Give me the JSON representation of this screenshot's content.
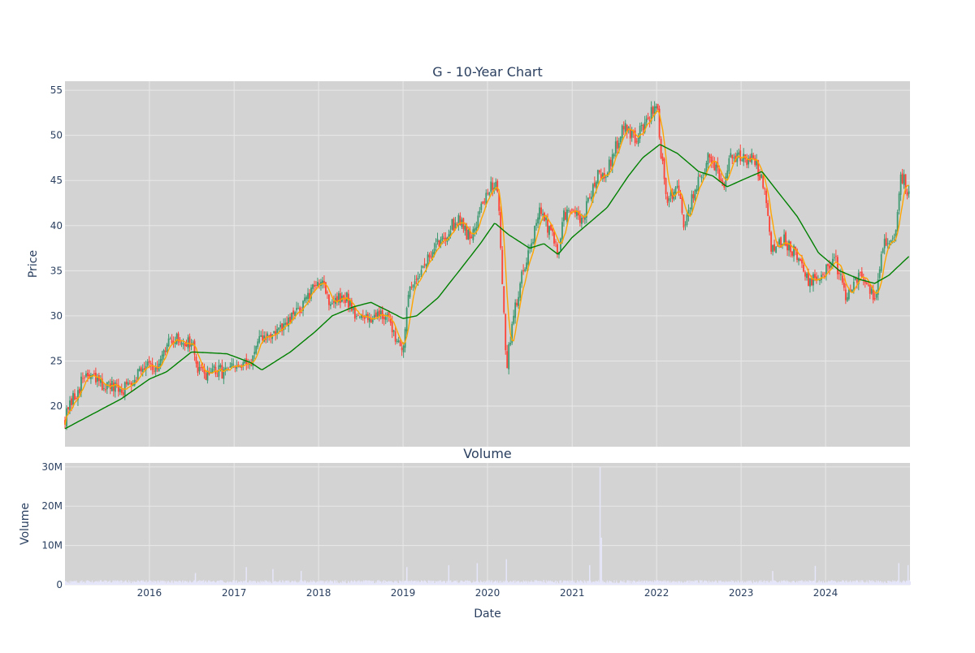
{
  "chart_data": [
    {
      "type": "candlestick",
      "title": "G - 10-Year Chart",
      "ylabel": "Price",
      "xrange": [
        "2015-01-01",
        "2024-12-31"
      ],
      "ylim": [
        15.5,
        56
      ],
      "yticks": [
        20,
        25,
        30,
        35,
        40,
        45,
        50,
        55
      ],
      "grid": true,
      "legend": "none",
      "colors": {
        "up": "#3d9970",
        "down": "#ff4136",
        "ma_short": "#ffa500",
        "ma_long": "#008000",
        "plot_bg": "#d3d3d3",
        "grid": "#e8e8e8",
        "text": "#2a3f5f"
      },
      "price_anchors": [
        [
          "2015-01-01",
          18.7
        ],
        [
          "2015-03-01",
          22.0
        ],
        [
          "2015-04-01",
          23.5
        ],
        [
          "2015-06-01",
          22.5
        ],
        [
          "2015-09-01",
          21.6
        ],
        [
          "2016-01-01",
          25.3
        ],
        [
          "2016-02-01",
          23.5
        ],
        [
          "2016-04-01",
          27.5
        ],
        [
          "2016-07-01",
          27.0
        ],
        [
          "2016-08-01",
          23.6
        ],
        [
          "2016-11-01",
          23.8
        ],
        [
          "2017-03-01",
          24.5
        ],
        [
          "2017-05-01",
          27.5
        ],
        [
          "2017-08-01",
          28.5
        ],
        [
          "2017-12-01",
          32.5
        ],
        [
          "2018-01-15",
          34.5
        ],
        [
          "2018-02-15",
          31.5
        ],
        [
          "2018-05-01",
          32.0
        ],
        [
          "2018-07-01",
          29.5
        ],
        [
          "2018-10-01",
          30.5
        ],
        [
          "2019-01-01",
          26.5
        ],
        [
          "2019-02-01",
          33.5
        ],
        [
          "2019-04-01",
          35.5
        ],
        [
          "2019-06-01",
          38.0
        ],
        [
          "2019-09-01",
          41.0
        ],
        [
          "2019-10-15",
          38.5
        ],
        [
          "2020-01-01",
          44.0
        ],
        [
          "2020-02-15",
          44.5
        ],
        [
          "2020-03-23",
          24.0
        ],
        [
          "2020-04-15",
          29.0
        ],
        [
          "2020-06-01",
          35.0
        ],
        [
          "2020-08-15",
          41.5
        ],
        [
          "2020-10-15",
          38.5
        ],
        [
          "2020-11-01",
          36.0
        ],
        [
          "2020-11-20",
          41.0
        ],
        [
          "2021-01-01",
          41.5
        ],
        [
          "2021-02-15",
          40.5
        ],
        [
          "2021-04-15",
          45.5
        ],
        [
          "2021-06-01",
          46.0
        ],
        [
          "2021-08-15",
          51.5
        ],
        [
          "2021-10-01",
          49.5
        ],
        [
          "2022-01-01",
          53.5
        ],
        [
          "2022-01-20",
          48.0
        ],
        [
          "2022-02-15",
          43.0
        ],
        [
          "2022-04-01",
          44.0
        ],
        [
          "2022-05-01",
          40.0
        ],
        [
          "2022-06-15",
          44.0
        ],
        [
          "2022-08-15",
          47.5
        ],
        [
          "2022-10-15",
          44.5
        ],
        [
          "2022-11-15",
          47.5
        ],
        [
          "2023-03-01",
          47.5
        ],
        [
          "2023-04-15",
          43.5
        ],
        [
          "2023-05-10",
          37.5
        ],
        [
          "2023-07-01",
          38.5
        ],
        [
          "2023-09-15",
          36.5
        ],
        [
          "2023-10-20",
          33.5
        ],
        [
          "2024-01-01",
          35.0
        ],
        [
          "2024-02-15",
          36.0
        ],
        [
          "2024-04-01",
          32.0
        ],
        [
          "2024-06-01",
          34.5
        ],
        [
          "2024-08-01",
          32.0
        ],
        [
          "2024-09-15",
          38.5
        ],
        [
          "2024-11-01",
          39.0
        ],
        [
          "2024-11-20",
          46.0
        ],
        [
          "2024-12-31",
          43.0
        ]
      ],
      "ma_long_anchors": [
        [
          "2015-01-01",
          17.5
        ],
        [
          "2015-09-01",
          20.8
        ],
        [
          "2016-01-01",
          23.0
        ],
        [
          "2016-03-15",
          23.8
        ],
        [
          "2016-07-01",
          26.0
        ],
        [
          "2016-12-01",
          25.8
        ],
        [
          "2017-03-15",
          24.8
        ],
        [
          "2017-05-01",
          24.0
        ],
        [
          "2017-09-01",
          26.0
        ],
        [
          "2017-12-15",
          28.2
        ],
        [
          "2018-03-01",
          30.0
        ],
        [
          "2018-06-01",
          31.0
        ],
        [
          "2018-08-15",
          31.5
        ],
        [
          "2018-11-01",
          30.5
        ],
        [
          "2019-01-01",
          29.7
        ],
        [
          "2019-03-01",
          30.0
        ],
        [
          "2019-06-01",
          32.0
        ],
        [
          "2019-09-01",
          35.0
        ],
        [
          "2019-12-01",
          38.0
        ],
        [
          "2020-02-01",
          40.3
        ],
        [
          "2020-04-01",
          39.0
        ],
        [
          "2020-07-01",
          37.5
        ],
        [
          "2020-09-01",
          38.0
        ],
        [
          "2020-11-01",
          36.8
        ],
        [
          "2021-01-01",
          38.7
        ],
        [
          "2021-06-01",
          42.0
        ],
        [
          "2021-09-01",
          45.5
        ],
        [
          "2021-11-01",
          47.5
        ],
        [
          "2022-01-15",
          49.0
        ],
        [
          "2022-04-01",
          48.0
        ],
        [
          "2022-07-01",
          46.0
        ],
        [
          "2022-09-01",
          45.5
        ],
        [
          "2022-11-01",
          44.3
        ],
        [
          "2023-01-01",
          45.0
        ],
        [
          "2023-04-01",
          46.0
        ],
        [
          "2023-06-01",
          44.0
        ],
        [
          "2023-09-01",
          41.0
        ],
        [
          "2023-12-01",
          37.0
        ],
        [
          "2024-03-01",
          35.0
        ],
        [
          "2024-06-01",
          34.0
        ],
        [
          "2024-08-01",
          33.6
        ],
        [
          "2024-10-01",
          34.5
        ],
        [
          "2024-12-31",
          36.7
        ]
      ]
    },
    {
      "type": "bar",
      "title": "Volume",
      "ylabel": "Volume",
      "xlabel": "Date",
      "xrange": [
        "2015-01-01",
        "2024-12-31"
      ],
      "ylim": [
        0,
        31000000
      ],
      "ytick_values": [
        0,
        10000000,
        20000000,
        30000000
      ],
      "ytick_labels": [
        "0",
        "10M",
        "20M",
        "30M"
      ],
      "xtick_labels": [
        "2016",
        "2017",
        "2018",
        "2019",
        "2020",
        "2021",
        "2022",
        "2023",
        "2024"
      ],
      "grid": true,
      "baseline_volume": 800000,
      "volume_spikes": [
        [
          "2016-07-15",
          3000000
        ],
        [
          "2017-02-20",
          4500000
        ],
        [
          "2017-06-15",
          4000000
        ],
        [
          "2017-10-15",
          3500000
        ],
        [
          "2019-01-15",
          4500000
        ],
        [
          "2019-07-15",
          5000000
        ],
        [
          "2019-11-15",
          5500000
        ],
        [
          "2020-03-20",
          6500000
        ],
        [
          "2021-03-15",
          5000000
        ],
        [
          "2021-04-29",
          30000000
        ],
        [
          "2021-05-05",
          12000000
        ],
        [
          "2023-05-15",
          3500000
        ],
        [
          "2023-11-15",
          4800000
        ],
        [
          "2024-11-10",
          5500000
        ],
        [
          "2024-12-20",
          5000000
        ]
      ]
    }
  ]
}
